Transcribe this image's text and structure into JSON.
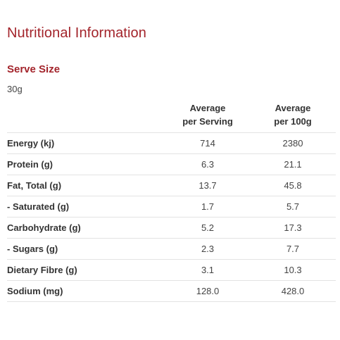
{
  "title": "Nutritional Information",
  "serve_size": {
    "heading": "Serve Size",
    "value": "30g"
  },
  "table": {
    "headers": [
      {
        "line1": "",
        "line2": ""
      },
      {
        "line1": "Average",
        "line2": "per Serving"
      },
      {
        "line1": "Average",
        "line2": "per 100g"
      }
    ],
    "rows": [
      {
        "label": "Energy (kj)",
        "per_serving": "714",
        "per_100g": "2380"
      },
      {
        "label": "Protein (g)",
        "per_serving": "6.3",
        "per_100g": "21.1"
      },
      {
        "label": "Fat, Total (g)",
        "per_serving": "13.7",
        "per_100g": "45.8"
      },
      {
        "label": "- Saturated (g)",
        "per_serving": "1.7",
        "per_100g": "5.7"
      },
      {
        "label": "Carbohydrate (g)",
        "per_serving": "5.2",
        "per_100g": "17.3"
      },
      {
        "label": "- Sugars (g)",
        "per_serving": "2.3",
        "per_100g": "7.7"
      },
      {
        "label": "Dietary Fibre (g)",
        "per_serving": "3.1",
        "per_100g": "10.3"
      },
      {
        "label": "Sodium (mg)",
        "per_serving": "128.0",
        "per_100g": "428.0"
      }
    ]
  },
  "colors": {
    "accent": "#a3242b",
    "divider": "#e3e3e3",
    "text": "#333333"
  }
}
